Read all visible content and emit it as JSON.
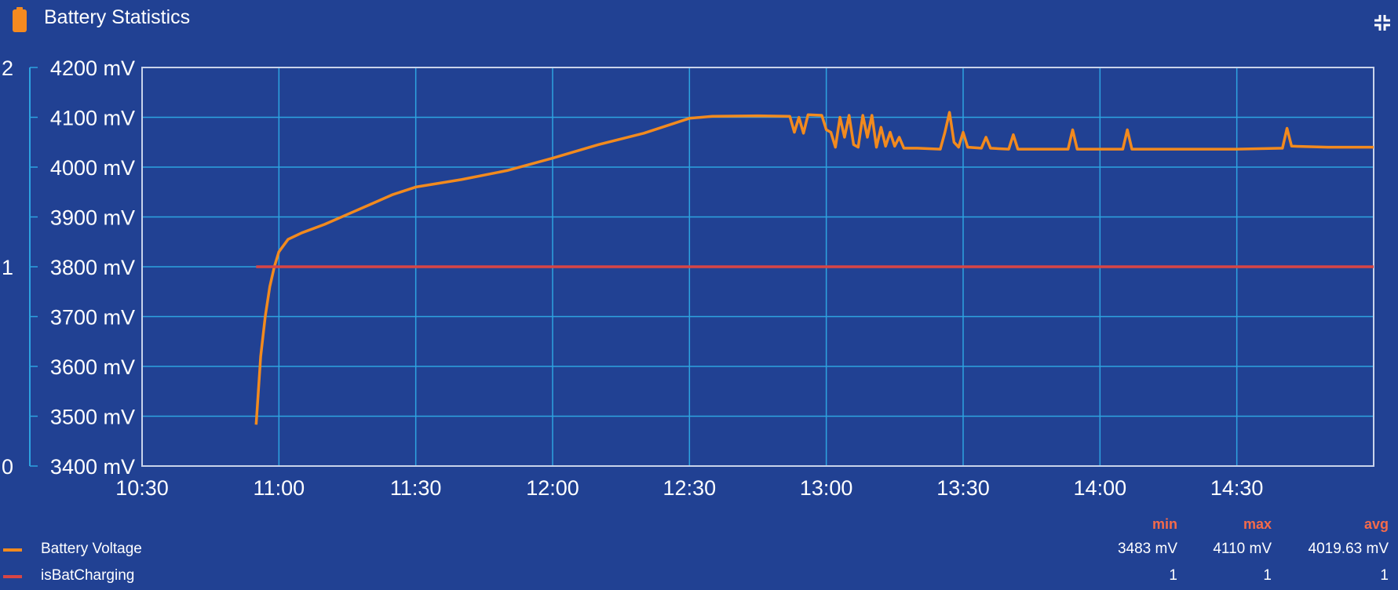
{
  "header": {
    "title": "Battery Statistics",
    "icon": "battery-icon",
    "collapse_icon": "collapse-arrows-icon"
  },
  "colors": {
    "background": "#214193",
    "grid": "#2ea3e0",
    "voltage": "#f28a1e",
    "charging": "#d84545",
    "stat_header": "#f56b4a"
  },
  "legend": {
    "headers": {
      "min": "min",
      "max": "max",
      "avg": "avg"
    },
    "rows": [
      {
        "name": "Battery Voltage",
        "min": "3483 mV",
        "max": "4110 mV",
        "avg": "4019.63 mV"
      },
      {
        "name": "isBatCharging",
        "min": "1",
        "max": "1",
        "avg": "1"
      }
    ]
  },
  "chart_data": {
    "type": "line",
    "title": "Battery Statistics",
    "x_ticks": [
      "10:30",
      "11:00",
      "11:30",
      "12:00",
      "12:30",
      "13:00",
      "13:30",
      "14:00",
      "14:30"
    ],
    "xlim": [
      "10:30",
      "15:00"
    ],
    "y_ticks_left": [
      "4200 mV",
      "4100 mV",
      "4000 mV",
      "3900 mV",
      "3800 mV",
      "3700 mV",
      "3600 mV",
      "3500 mV",
      "3400 mV"
    ],
    "ylim_left": [
      3400,
      4200
    ],
    "y_ticks_secondary": [
      "2",
      "1",
      "0"
    ],
    "ylim_secondary": [
      0,
      2
    ],
    "grid": true,
    "legend_position": "bottom",
    "series": [
      {
        "name": "Battery Voltage",
        "unit": "mV",
        "axis": "left",
        "color": "#f28a1e",
        "points": [
          [
            "10:55",
            3483
          ],
          [
            "10:56",
            3620
          ],
          [
            "10:57",
            3700
          ],
          [
            "10:58",
            3760
          ],
          [
            "10:59",
            3800
          ],
          [
            "11:00",
            3830
          ],
          [
            "11:02",
            3855
          ],
          [
            "11:05",
            3868
          ],
          [
            "11:10",
            3885
          ],
          [
            "11:15",
            3905
          ],
          [
            "11:20",
            3925
          ],
          [
            "11:25",
            3945
          ],
          [
            "11:30",
            3960
          ],
          [
            "11:40",
            3975
          ],
          [
            "11:50",
            3993
          ],
          [
            "12:00",
            4018
          ],
          [
            "12:10",
            4045
          ],
          [
            "12:20",
            4068
          ],
          [
            "12:30",
            4098
          ],
          [
            "12:35",
            4102
          ],
          [
            "12:45",
            4103
          ],
          [
            "12:52",
            4102
          ],
          [
            "12:53",
            4070
          ],
          [
            "12:54",
            4100
          ],
          [
            "12:55",
            4068
          ],
          [
            "12:56",
            4105
          ],
          [
            "12:59",
            4104
          ],
          [
            "13:00",
            4075
          ],
          [
            "13:01",
            4070
          ],
          [
            "13:02",
            4040
          ],
          [
            "13:03",
            4100
          ],
          [
            "13:04",
            4060
          ],
          [
            "13:05",
            4104
          ],
          [
            "13:06",
            4045
          ],
          [
            "13:07",
            4040
          ],
          [
            "13:08",
            4104
          ],
          [
            "13:09",
            4060
          ],
          [
            "13:10",
            4104
          ],
          [
            "13:11",
            4040
          ],
          [
            "13:12",
            4080
          ],
          [
            "13:13",
            4042
          ],
          [
            "13:14",
            4070
          ],
          [
            "13:15",
            4042
          ],
          [
            "13:16",
            4060
          ],
          [
            "13:17",
            4038
          ],
          [
            "13:20",
            4038
          ],
          [
            "13:25",
            4036
          ],
          [
            "13:26",
            4070
          ],
          [
            "13:27",
            4110
          ],
          [
            "13:28",
            4050
          ],
          [
            "13:29",
            4040
          ],
          [
            "13:30",
            4070
          ],
          [
            "13:31",
            4040
          ],
          [
            "13:34",
            4038
          ],
          [
            "13:35",
            4060
          ],
          [
            "13:36",
            4038
          ],
          [
            "13:40",
            4036
          ],
          [
            "13:41",
            4065
          ],
          [
            "13:42",
            4036
          ],
          [
            "13:50",
            4036
          ],
          [
            "13:53",
            4036
          ],
          [
            "13:54",
            4075
          ],
          [
            "13:55",
            4036
          ],
          [
            "14:05",
            4036
          ],
          [
            "14:06",
            4075
          ],
          [
            "14:07",
            4036
          ],
          [
            "14:30",
            4036
          ],
          [
            "14:40",
            4038
          ],
          [
            "14:41",
            4078
          ],
          [
            "14:42",
            4042
          ],
          [
            "14:50",
            4040
          ],
          [
            "15:00",
            4040
          ]
        ]
      },
      {
        "name": "isBatCharging",
        "axis": "secondary",
        "color": "#d84545",
        "points": [
          [
            "10:55",
            1
          ],
          [
            "15:00",
            1
          ]
        ]
      }
    ],
    "stats": {
      "Battery Voltage": {
        "min": 3483,
        "max": 4110,
        "avg": 4019.63
      },
      "isBatCharging": {
        "min": 1,
        "max": 1,
        "avg": 1
      }
    }
  }
}
